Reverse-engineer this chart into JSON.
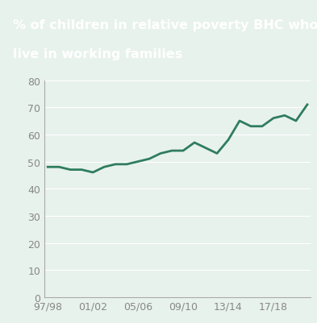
{
  "title_line1": "% of children in relative poverty BHC who",
  "title_line2": "live in working families",
  "title_bg_color": "#2e7d5e",
  "title_text_color": "#ffffff",
  "plot_bg_color": "#e8f2ec",
  "fig_bg_color": "#e8f2ec",
  "line_color": "#2e7d5e",
  "line_width": 2.0,
  "x_labels": [
    "97/98",
    "01/02",
    "05/06",
    "09/10",
    "13/14",
    "17/18"
  ],
  "x_tick_positions": [
    0,
    4,
    8,
    12,
    16,
    20
  ],
  "y_values": [
    48,
    48,
    47,
    47,
    46,
    48,
    49,
    49,
    50,
    51,
    53,
    54,
    54,
    57,
    55,
    53,
    58,
    65,
    63,
    63,
    66,
    67,
    65,
    71
  ],
  "ylim": [
    0,
    80
  ],
  "yticks": [
    0,
    10,
    20,
    30,
    40,
    50,
    60,
    70,
    80
  ],
  "tick_color": "#888888",
  "axis_color": "#aaaaaa",
  "grid_color": "#ffffff",
  "title_fontsize": 11.5,
  "tick_fontsize": 9
}
